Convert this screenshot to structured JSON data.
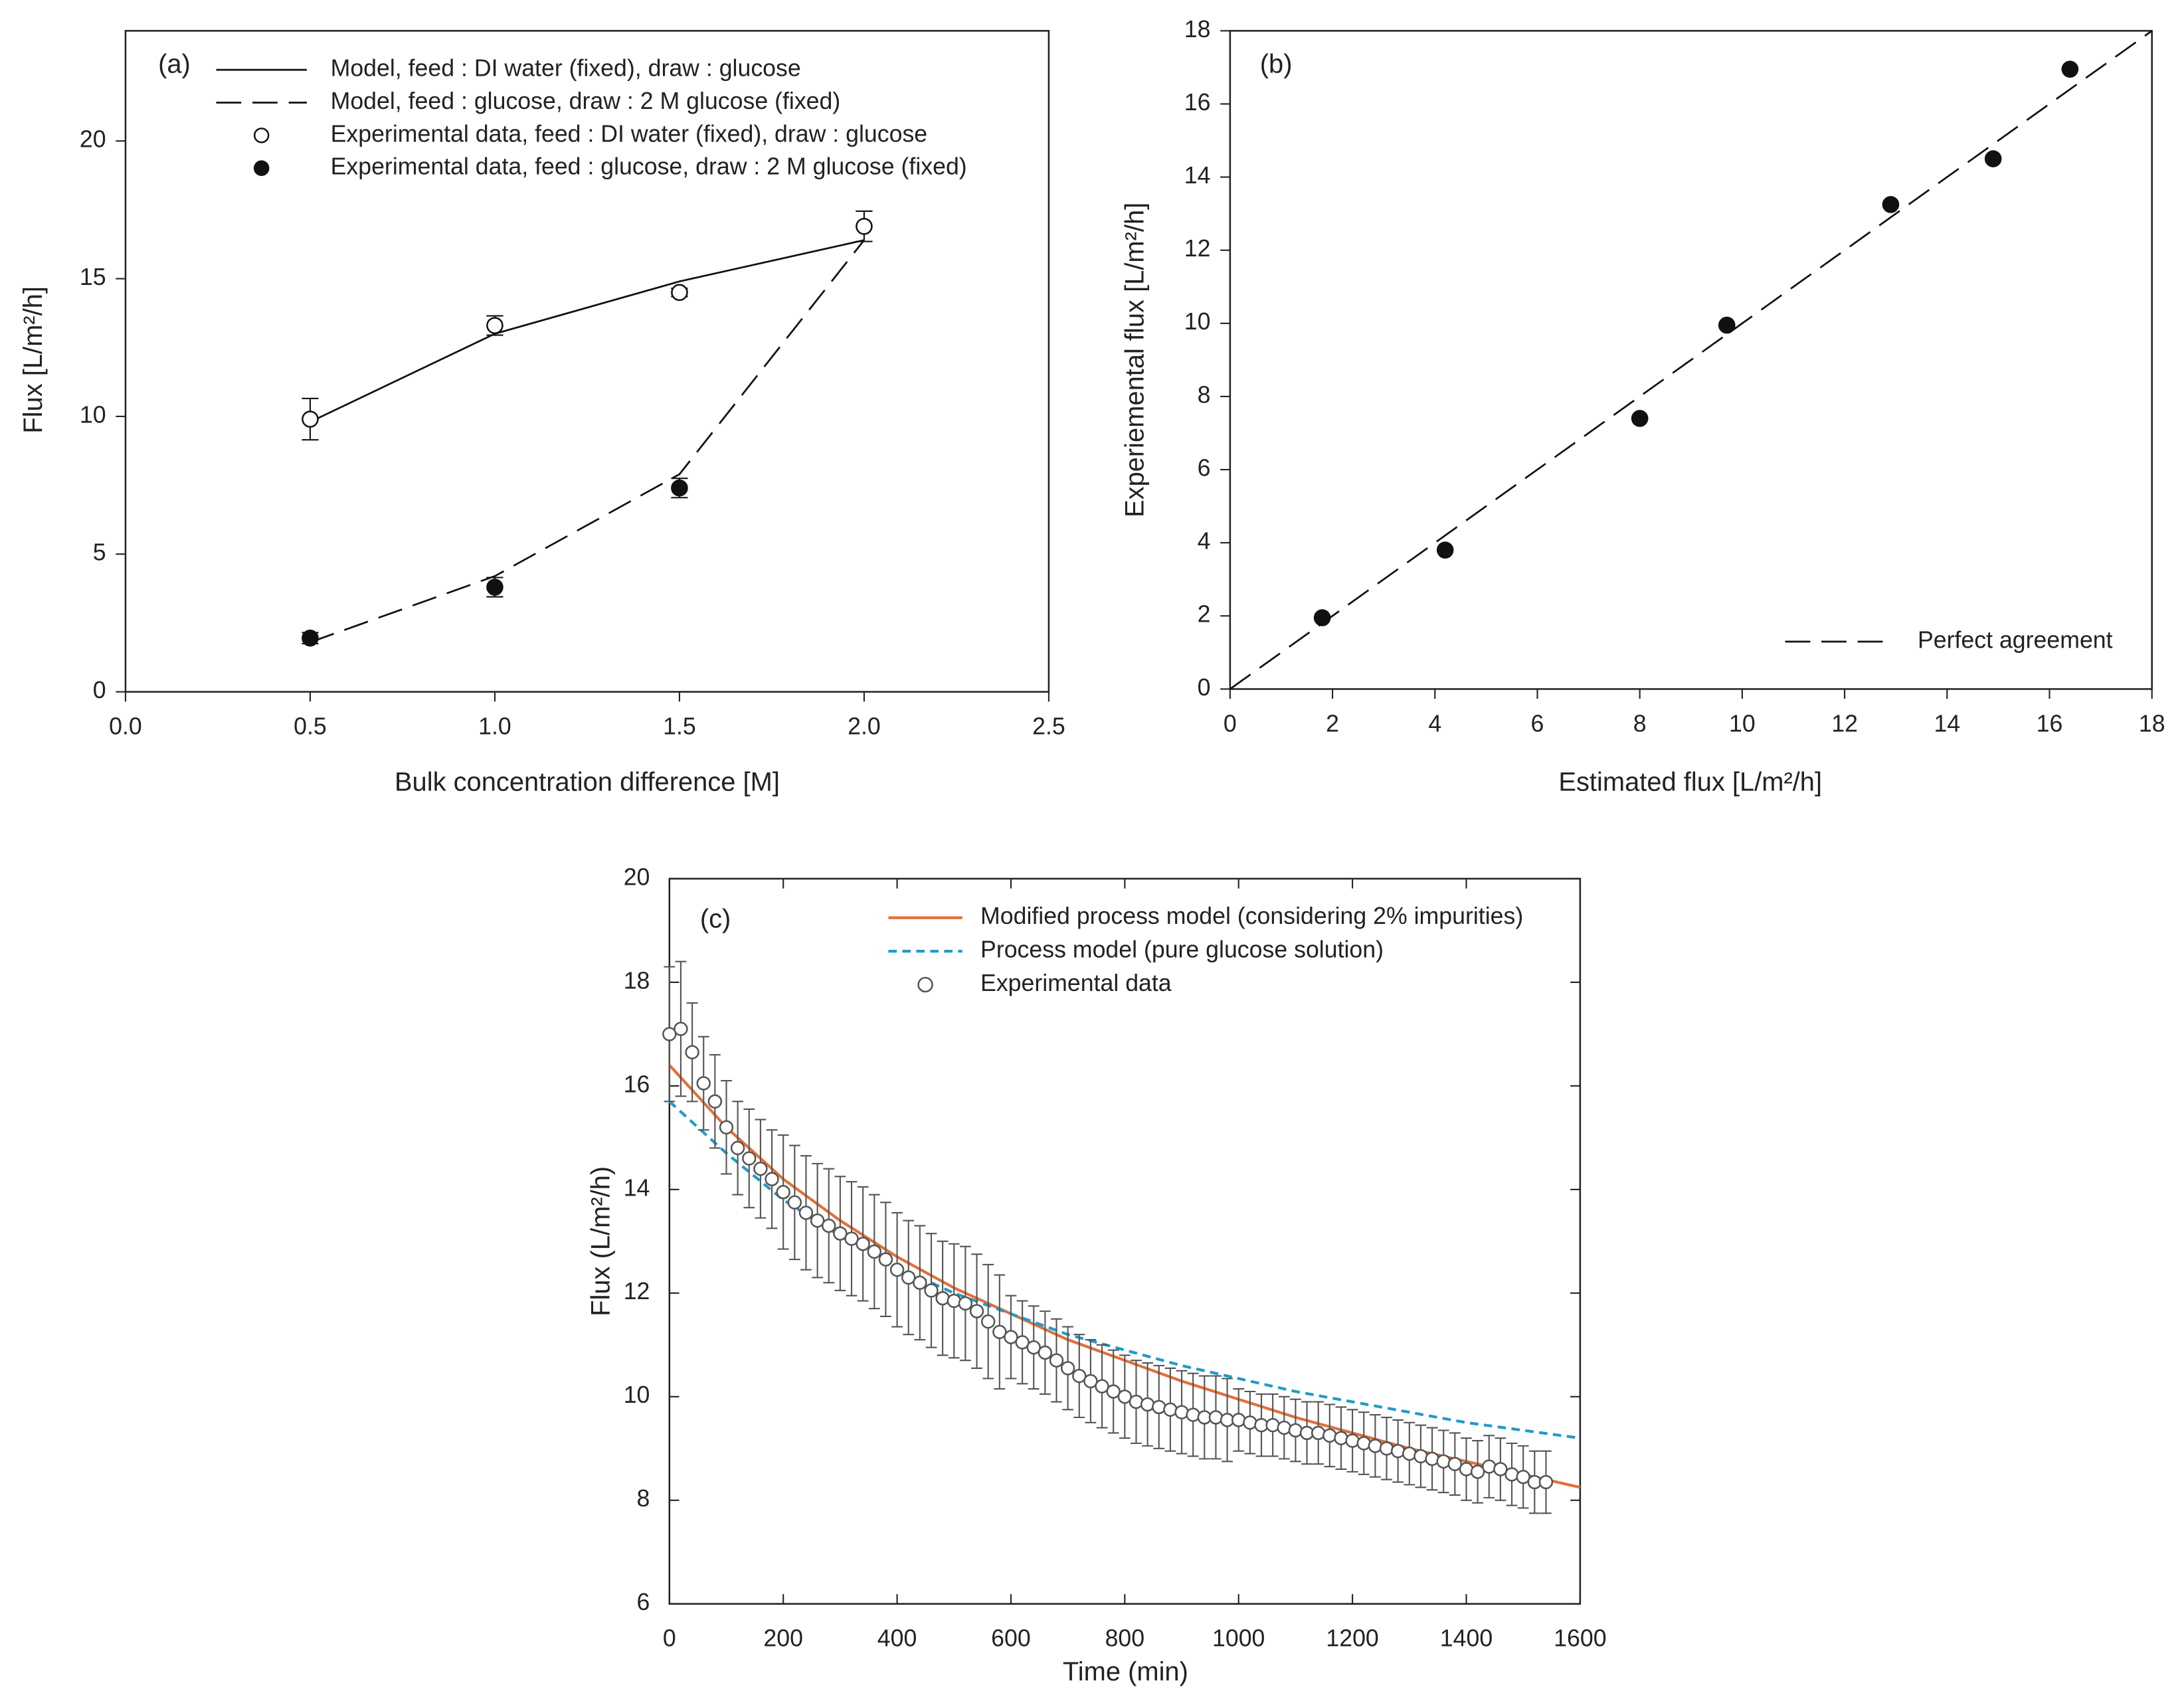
{
  "chart_data": [
    {
      "type": "line",
      "label": "(a)",
      "xlabel": "Bulk concentration difference [M]",
      "ylabel": "Flux [L/m²/h]",
      "xlim": [
        0,
        2.5
      ],
      "xticks": [
        {
          "value": 0,
          "label": "0.0"
        },
        {
          "value": 0.5,
          "label": "0.5"
        },
        {
          "value": 1,
          "label": "1.0"
        },
        {
          "value": 1.5,
          "label": "1.5"
        },
        {
          "value": 2,
          "label": "2.0"
        },
        {
          "value": 2.5,
          "label": "2.5"
        }
      ],
      "ylim": [
        0,
        24
      ],
      "yticks": [
        0,
        5,
        10,
        15,
        20
      ],
      "legend": "upper left",
      "series": [
        {
          "name": "Model, feed : DI water (fixed), draw : glucose",
          "color": "#111111",
          "line": "solid",
          "x": [
            0.5,
            1,
            1.5,
            2
          ],
          "values": [
            9.8,
            13,
            14.9,
            16.4
          ]
        },
        {
          "name": "Model,  feed : glucose, draw : 2 M glucose (fixed)",
          "color": "#111111",
          "line": "dashed",
          "x": [
            0.5,
            1,
            1.5,
            2
          ],
          "values": [
            1.8,
            4.2,
            7.9,
            16.4
          ]
        },
        {
          "name": "Experimental data, feed : DI water (fixed), draw : glucose",
          "color": "#111111",
          "marker": "open",
          "x": [
            0.5,
            1,
            1.5,
            2
          ],
          "values": [
            9.9,
            13.3,
            14.5,
            16.9
          ],
          "errors": [
            0.75,
            0.35,
            0.15,
            0.55
          ]
        },
        {
          "name": "Experimental data, feed : glucose, draw : 2 M glucose (fixed)",
          "color": "#111111",
          "marker": "filled",
          "x": [
            0.5,
            1,
            1.5
          ],
          "values": [
            1.95,
            3.8,
            7.4
          ],
          "errors": [
            0.2,
            0.35,
            0.35
          ]
        }
      ]
    },
    {
      "type": "scatter",
      "label": "(b)",
      "xlabel": "Estimated flux [L/m²/h]",
      "ylabel": "Experiemental flux [L/m²/h]",
      "xlim": [
        0,
        18
      ],
      "xticks": [
        0,
        2,
        4,
        6,
        8,
        10,
        12,
        14,
        16,
        18
      ],
      "ylim": [
        0,
        18
      ],
      "yticks": [
        0,
        2,
        4,
        6,
        8,
        10,
        12,
        14,
        16,
        18
      ],
      "legend": "lower right",
      "series": [
        {
          "name": "Perfect agreement",
          "color": "#111111",
          "line": "dashed",
          "x": [
            0,
            18
          ],
          "values": [
            0,
            18
          ]
        },
        {
          "color": "#111111",
          "marker": "filled",
          "x": [
            1.8,
            4.2,
            8.0,
            9.7,
            12.9,
            14.9,
            16.4
          ],
          "values": [
            1.95,
            3.8,
            7.4,
            9.95,
            13.25,
            14.5,
            16.95
          ]
        }
      ]
    },
    {
      "type": "line",
      "label": "(c)",
      "xlabel": "Time (min)",
      "ylabel": "Flux (L/m²/h)",
      "xlim": [
        0,
        1600
      ],
      "xticks": [
        0,
        200,
        400,
        600,
        800,
        1000,
        1200,
        1400,
        1600
      ],
      "ylim": [
        6,
        20
      ],
      "yticks": [
        6,
        8,
        10,
        12,
        14,
        16,
        18,
        20
      ],
      "legend": "upper right",
      "series": [
        {
          "name": "Modified process model (considering 2% impurities)",
          "color": "#e0703a",
          "line": "solid",
          "x": [
            0,
            100,
            200,
            300,
            400,
            500,
            600,
            700,
            800,
            900,
            1000,
            1100,
            1200,
            1300,
            1400,
            1500,
            1600
          ],
          "values": [
            16.4,
            15.2,
            14.2,
            13.4,
            12.7,
            12.1,
            11.6,
            11.1,
            10.7,
            10.3,
            9.95,
            9.6,
            9.3,
            9.0,
            8.75,
            8.5,
            8.25
          ]
        },
        {
          "name": "Process model (pure glucose solution)",
          "color": "#1f9bc9",
          "line": "dashed",
          "x": [
            0,
            100,
            200,
            300,
            400,
            500,
            600,
            700,
            800,
            900,
            1000,
            1100,
            1200,
            1300,
            1400,
            1500,
            1600
          ],
          "values": [
            15.7,
            14.7,
            13.8,
            13.1,
            12.5,
            12.0,
            11.6,
            11.2,
            10.9,
            10.6,
            10.35,
            10.1,
            9.9,
            9.7,
            9.5,
            9.35,
            9.2
          ]
        },
        {
          "name": "Experimental data",
          "color": "#555555",
          "marker": "open",
          "x": [
            0,
            20,
            40,
            60,
            80,
            100,
            120,
            140,
            160,
            180,
            200,
            220,
            240,
            260,
            280,
            300,
            320,
            340,
            360,
            380,
            400,
            420,
            440,
            460,
            480,
            500,
            520,
            540,
            560,
            580,
            600,
            620,
            640,
            660,
            680,
            700,
            720,
            740,
            760,
            780,
            800,
            820,
            840,
            860,
            880,
            900,
            920,
            940,
            960,
            980,
            1000,
            1020,
            1040,
            1060,
            1080,
            1100,
            1120,
            1140,
            1160,
            1180,
            1200,
            1220,
            1240,
            1260,
            1280,
            1300,
            1320,
            1340,
            1360,
            1380,
            1400,
            1420,
            1440,
            1460,
            1480,
            1500,
            1520,
            1540
          ],
          "values": [
            17.0,
            17.1,
            16.65,
            16.05,
            15.7,
            15.2,
            14.8,
            14.6,
            14.4,
            14.2,
            13.95,
            13.75,
            13.55,
            13.4,
            13.3,
            13.15,
            13.05,
            12.95,
            12.8,
            12.65,
            12.45,
            12.3,
            12.2,
            12.05,
            11.9,
            11.85,
            11.8,
            11.65,
            11.45,
            11.25,
            11.15,
            11.05,
            10.95,
            10.85,
            10.7,
            10.55,
            10.4,
            10.3,
            10.2,
            10.1,
            10.0,
            9.9,
            9.85,
            9.8,
            9.75,
            9.7,
            9.65,
            9.6,
            9.6,
            9.55,
            9.55,
            9.5,
            9.45,
            9.45,
            9.4,
            9.35,
            9.3,
            9.3,
            9.25,
            9.2,
            9.15,
            9.1,
            9.05,
            9.0,
            8.95,
            8.9,
            8.85,
            8.8,
            8.75,
            8.7,
            8.6,
            8.55,
            8.65,
            8.6,
            8.5,
            8.45,
            8.35,
            8.35
          ],
          "errors": [
            1.3,
            1.3,
            0.95,
            0.9,
            0.9,
            0.9,
            0.9,
            0.95,
            0.95,
            0.95,
            1.1,
            1.1,
            1.1,
            1.1,
            1.1,
            1.1,
            1.1,
            1.1,
            1.1,
            1.1,
            1.1,
            1.1,
            1.1,
            1.1,
            1.1,
            1.1,
            1.1,
            1.1,
            1.1,
            1.1,
            0.8,
            0.8,
            0.8,
            0.8,
            0.8,
            0.8,
            0.8,
            0.8,
            0.8,
            0.8,
            0.8,
            0.8,
            0.8,
            0.8,
            0.8,
            0.8,
            0.8,
            0.8,
            0.8,
            0.8,
            0.6,
            0.6,
            0.6,
            0.6,
            0.6,
            0.6,
            0.6,
            0.6,
            0.6,
            0.6,
            0.6,
            0.6,
            0.6,
            0.6,
            0.6,
            0.6,
            0.6,
            0.6,
            0.6,
            0.6,
            0.6,
            0.6,
            0.6,
            0.6,
            0.6,
            0.6,
            0.6,
            0.6
          ]
        }
      ]
    }
  ]
}
